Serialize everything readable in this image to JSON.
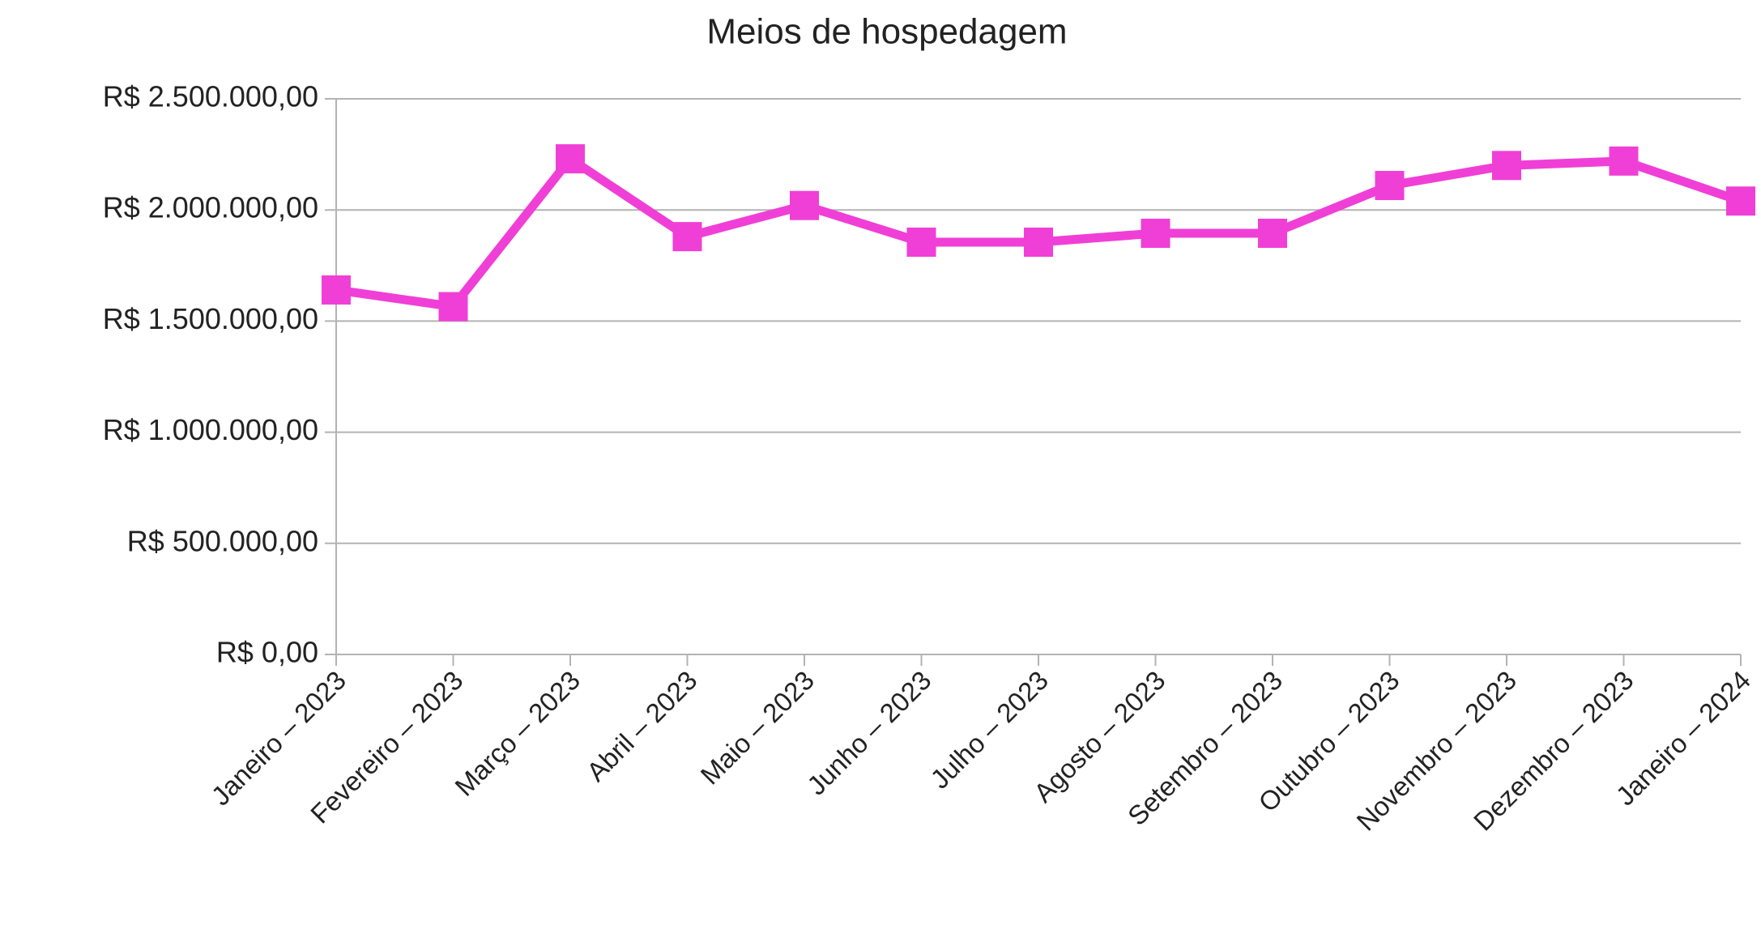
{
  "chart_data": {
    "type": "line",
    "title": "Meios de hospedagem",
    "categories": [
      "Janeiro – 2023",
      "Fevereiro – 2023",
      "Março – 2023",
      "Abril – 2023",
      "Maio – 2023",
      "Junho – 2023",
      "Julho – 2023",
      "Agosto – 2023",
      "Setembro – 2023",
      "Outubro – 2023",
      "Novembro – 2023",
      "Dezembro – 2023",
      "Janeiro – 2024"
    ],
    "series": [
      {
        "name": "Meios de hospedagem",
        "color": "#f03fd6",
        "values": [
          1640000,
          1565000,
          2230000,
          1880000,
          2020000,
          1855000,
          1855000,
          1895000,
          1895000,
          2110000,
          2200000,
          2220000,
          2040000
        ]
      }
    ],
    "ylim": [
      0,
      2500000
    ],
    "yticks": [
      {
        "value": 0,
        "label": "R$ 0,00"
      },
      {
        "value": 500000,
        "label": "R$ 500.000,00"
      },
      {
        "value": 1000000,
        "label": "R$ 1.000.000,00"
      },
      {
        "value": 1500000,
        "label": "R$ 1.500.000,00"
      },
      {
        "value": 2000000,
        "label": "R$ 2.000.000,00"
      },
      {
        "value": 2500000,
        "label": "R$ 2.500.000,00"
      }
    ],
    "grid": true
  }
}
